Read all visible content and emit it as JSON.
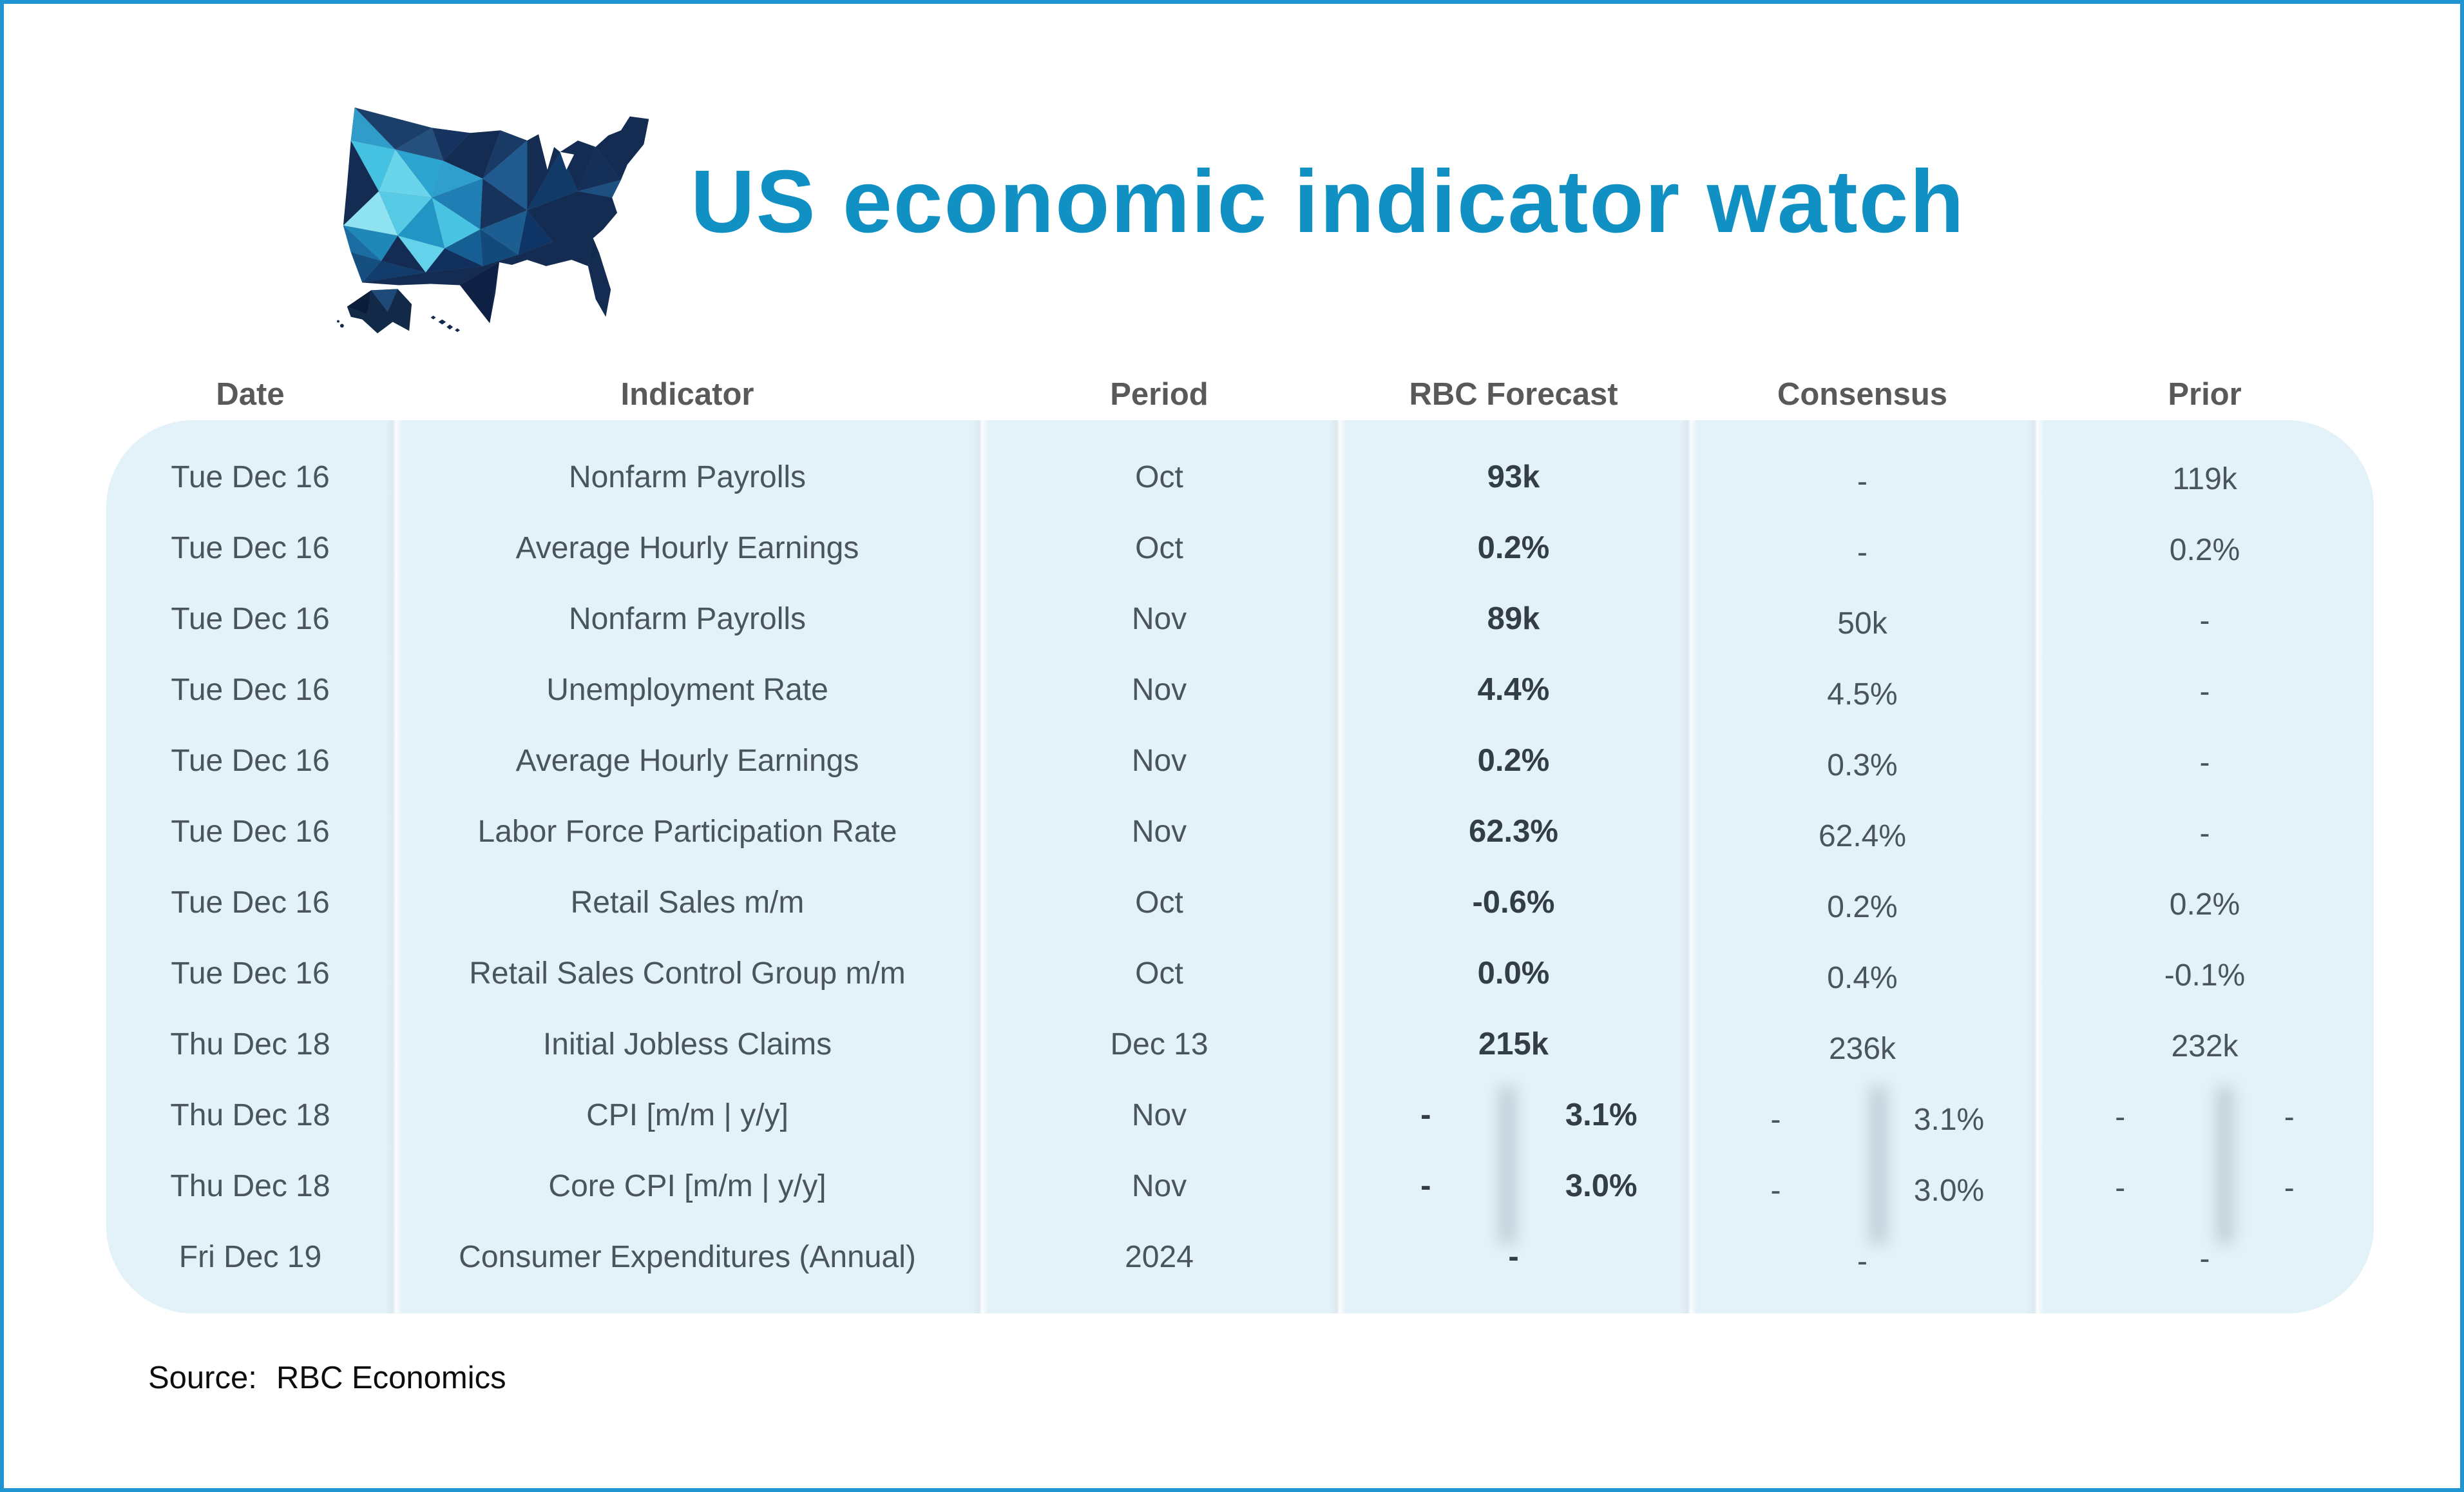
{
  "header": {
    "title": "US economic indicator watch",
    "logo_icon": "us-map-logo"
  },
  "colors": {
    "title_accent": "#1090c3",
    "frame_border": "#2095d2",
    "table_background": "#e3f1f8",
    "header_text": "#58595b",
    "body_text": "#4a545c",
    "forecast_bold_text": "#333d44"
  },
  "table": {
    "columns": [
      "Date",
      "Indicator",
      "Period",
      "RBC Forecast",
      "Consensus",
      "Prior"
    ],
    "rows": [
      {
        "date": "Tue Dec 16",
        "indicator": "Nonfarm Payrolls",
        "period": "Oct",
        "forecast": "93k",
        "consensus": "-",
        "prior": "119k"
      },
      {
        "date": "Tue Dec 16",
        "indicator": "Average Hourly Earnings",
        "period": "Oct",
        "forecast": "0.2%",
        "consensus": "-",
        "prior": "0.2%"
      },
      {
        "date": "Tue Dec 16",
        "indicator": "Nonfarm Payrolls",
        "period": "Nov",
        "forecast": "89k",
        "consensus": "50k",
        "prior": "-"
      },
      {
        "date": "Tue Dec 16",
        "indicator": "Unemployment Rate",
        "period": "Nov",
        "forecast": "4.4%",
        "consensus": "4.5%",
        "prior": "-"
      },
      {
        "date": "Tue Dec 16",
        "indicator": "Average Hourly Earnings",
        "period": "Nov",
        "forecast": "0.2%",
        "consensus": "0.3%",
        "prior": "-"
      },
      {
        "date": "Tue Dec 16",
        "indicator": "Labor Force Participation Rate",
        "period": "Nov",
        "forecast": "62.3%",
        "consensus": "62.4%",
        "prior": "-"
      },
      {
        "date": "Tue Dec 16",
        "indicator": "Retail Sales m/m",
        "period": "Oct",
        "forecast": "-0.6%",
        "consensus": "0.2%",
        "prior": "0.2%"
      },
      {
        "date": "Tue Dec 16",
        "indicator": "Retail Sales Control Group m/m",
        "period": "Oct",
        "forecast": "0.0%",
        "consensus": "0.4%",
        "prior": "-0.1%"
      },
      {
        "date": "Thu Dec 18",
        "indicator": "Initial Jobless Claims",
        "period": "Dec 13",
        "forecast": "215k",
        "consensus": "236k",
        "prior": "232k"
      },
      {
        "date": "Thu Dec 18",
        "indicator": "CPI [m/m | y/y]",
        "period": "Nov",
        "forecast": [
          "-",
          "3.1%"
        ],
        "consensus": [
          "-",
          "3.1%"
        ],
        "prior": [
          "-",
          "-"
        ]
      },
      {
        "date": "Thu Dec 18",
        "indicator": "Core CPI [m/m | y/y]",
        "period": "Nov",
        "forecast": [
          "-",
          "3.0%"
        ],
        "consensus": [
          "-",
          "3.0%"
        ],
        "prior": [
          "-",
          "-"
        ]
      },
      {
        "date": "Fri Dec 19",
        "indicator": "Consumer Expenditures (Annual)",
        "period": "2024",
        "forecast": "-",
        "consensus": "-",
        "prior": "-"
      }
    ]
  },
  "footer": {
    "source_label": "Source:",
    "source_value": "RBC Economics"
  }
}
